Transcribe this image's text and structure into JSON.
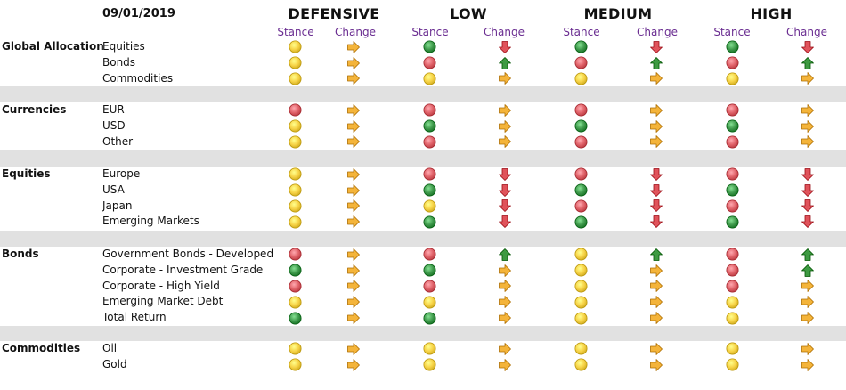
{
  "header": {
    "date": "09/01/2019",
    "profiles": [
      "DEFENSIVE",
      "LOW",
      "MEDIUM",
      "HIGH"
    ],
    "stance_label": "Stance",
    "change_label": "Change"
  },
  "colors": {
    "green": "#3f9a4c",
    "yellow": "#f7d347",
    "red": "#e06269",
    "arrow_right": "#f4b43a",
    "arrow_down": "#e0535b",
    "arrow_up": "#3e9a42",
    "purple": "#6a2d91",
    "band": "#e1e1e1"
  },
  "sections": [
    {
      "name": "Global Allocation",
      "rows": [
        {
          "label": "Equities",
          "cells": [
            [
              "yellow",
              "right"
            ],
            [
              "green",
              "down"
            ],
            [
              "green",
              "down"
            ],
            [
              "green",
              "down"
            ]
          ]
        },
        {
          "label": "Bonds",
          "cells": [
            [
              "yellow",
              "right"
            ],
            [
              "red",
              "up"
            ],
            [
              "red",
              "up"
            ],
            [
              "red",
              "up"
            ]
          ]
        },
        {
          "label": "Commodities",
          "cells": [
            [
              "yellow",
              "right"
            ],
            [
              "yellow",
              "right"
            ],
            [
              "yellow",
              "right"
            ],
            [
              "yellow",
              "right"
            ]
          ]
        }
      ]
    },
    {
      "name": "Currencies",
      "rows": [
        {
          "label": "EUR",
          "cells": [
            [
              "red",
              "right"
            ],
            [
              "red",
              "right"
            ],
            [
              "red",
              "right"
            ],
            [
              "red",
              "right"
            ]
          ]
        },
        {
          "label": "USD",
          "cells": [
            [
              "yellow",
              "right"
            ],
            [
              "green",
              "right"
            ],
            [
              "green",
              "right"
            ],
            [
              "green",
              "right"
            ]
          ]
        },
        {
          "label": "Other",
          "cells": [
            [
              "yellow",
              "right"
            ],
            [
              "red",
              "right"
            ],
            [
              "red",
              "right"
            ],
            [
              "red",
              "right"
            ]
          ]
        }
      ]
    },
    {
      "name": "Equities",
      "rows": [
        {
          "label": "Europe",
          "cells": [
            [
              "yellow",
              "right"
            ],
            [
              "red",
              "down"
            ],
            [
              "red",
              "down"
            ],
            [
              "red",
              "down"
            ]
          ]
        },
        {
          "label": "USA",
          "cells": [
            [
              "yellow",
              "right"
            ],
            [
              "green",
              "down"
            ],
            [
              "green",
              "down"
            ],
            [
              "green",
              "down"
            ]
          ]
        },
        {
          "label": "Japan",
          "cells": [
            [
              "yellow",
              "right"
            ],
            [
              "yellow",
              "down"
            ],
            [
              "red",
              "down"
            ],
            [
              "red",
              "down"
            ]
          ]
        },
        {
          "label": "Emerging Markets",
          "cells": [
            [
              "yellow",
              "right"
            ],
            [
              "green",
              "down"
            ],
            [
              "green",
              "down"
            ],
            [
              "green",
              "down"
            ]
          ]
        }
      ]
    },
    {
      "name": "Bonds",
      "rows": [
        {
          "label": "Government Bonds - Developed",
          "cells": [
            [
              "red",
              "right"
            ],
            [
              "red",
              "up"
            ],
            [
              "yellow",
              "up"
            ],
            [
              "red",
              "up"
            ]
          ]
        },
        {
          "label": "Corporate - Investment Grade",
          "cells": [
            [
              "green",
              "right"
            ],
            [
              "green",
              "right"
            ],
            [
              "yellow",
              "right"
            ],
            [
              "red",
              "up"
            ]
          ]
        },
        {
          "label": "Corporate - High Yield",
          "cells": [
            [
              "red",
              "right"
            ],
            [
              "red",
              "right"
            ],
            [
              "yellow",
              "right"
            ],
            [
              "red",
              "right"
            ]
          ]
        },
        {
          "label": "Emerging Market Debt",
          "cells": [
            [
              "yellow",
              "right"
            ],
            [
              "yellow",
              "right"
            ],
            [
              "yellow",
              "right"
            ],
            [
              "yellow",
              "right"
            ]
          ]
        },
        {
          "label": "Total Return",
          "cells": [
            [
              "green",
              "right"
            ],
            [
              "green",
              "right"
            ],
            [
              "yellow",
              "right"
            ],
            [
              "yellow",
              "right"
            ]
          ]
        }
      ]
    },
    {
      "name": "Commodities",
      "rows": [
        {
          "label": "Oil",
          "cells": [
            [
              "yellow",
              "right"
            ],
            [
              "yellow",
              "right"
            ],
            [
              "yellow",
              "right"
            ],
            [
              "yellow",
              "right"
            ]
          ]
        },
        {
          "label": "Gold",
          "cells": [
            [
              "yellow",
              "right"
            ],
            [
              "yellow",
              "right"
            ],
            [
              "yellow",
              "right"
            ],
            [
              "yellow",
              "right"
            ]
          ]
        }
      ]
    }
  ]
}
